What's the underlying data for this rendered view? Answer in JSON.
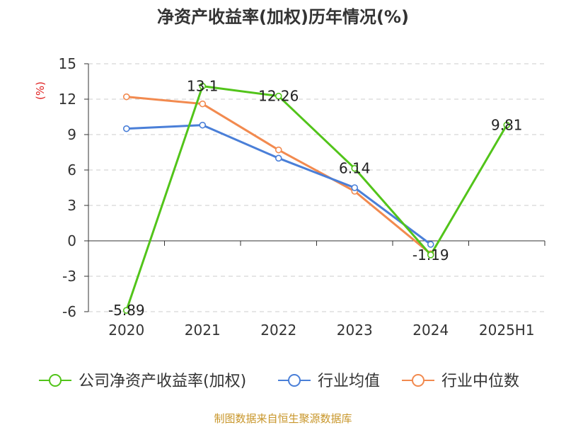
{
  "chart_data": {
    "type": "line",
    "title": "净资产收益率(加权)历年情况(%)",
    "unit_label": "(%)",
    "categories": [
      "2020",
      "2021",
      "2022",
      "2023",
      "2024",
      "2025H1"
    ],
    "ylim": [
      -6,
      15
    ],
    "yticks": [
      15,
      12,
      9,
      6,
      3,
      0,
      -3,
      -6
    ],
    "grid": true,
    "legend_position": "bottom",
    "series": [
      {
        "name": "公司净资产收益率(加权)",
        "color": "#52c41a",
        "values": [
          -5.89,
          13.1,
          12.26,
          6.14,
          -1.19,
          9.81
        ],
        "labels": [
          "-5.89",
          "13.1",
          "12.26",
          "6.14",
          "-1.19",
          "9.81"
        ]
      },
      {
        "name": "行业均值",
        "color": "#4a7fd8",
        "values": [
          9.5,
          9.8,
          7.0,
          4.5,
          -0.3,
          null
        ]
      },
      {
        "name": "行业中位数",
        "color": "#f28a4f",
        "values": [
          12.2,
          11.6,
          7.7,
          4.2,
          -1.1,
          null
        ]
      }
    ],
    "source": "制图数据来自恒生聚源数据库"
  }
}
